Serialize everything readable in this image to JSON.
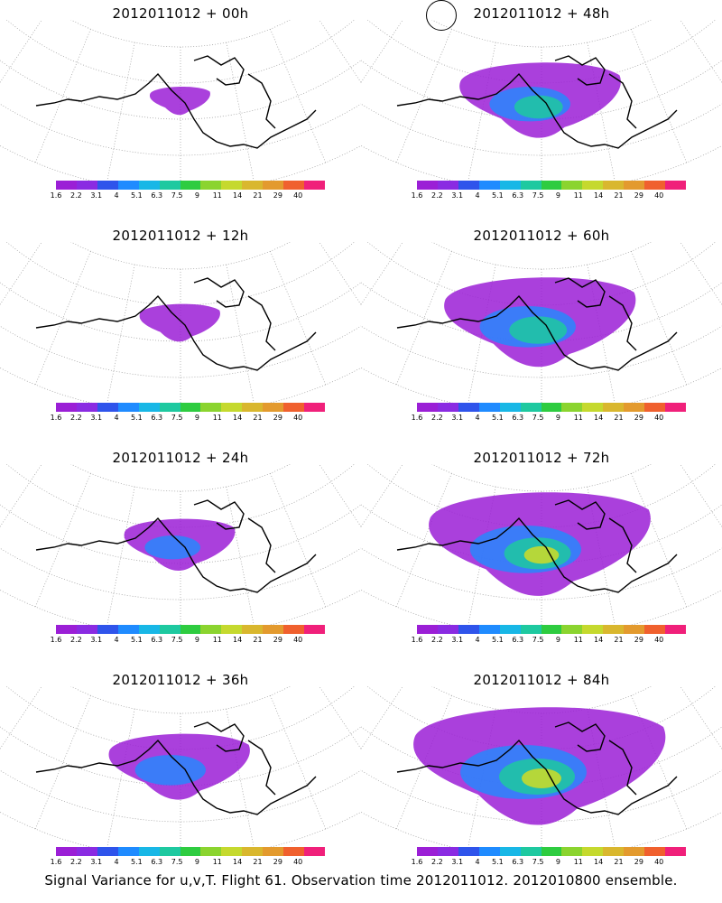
{
  "panels": [
    {
      "title": "2012011012 + 00h",
      "intensity": 0.05
    },
    {
      "title": "2012011012 + 48h",
      "intensity": 0.55
    },
    {
      "title": "2012011012 + 12h",
      "intensity": 0.15
    },
    {
      "title": "2012011012 + 60h",
      "intensity": 0.7
    },
    {
      "title": "2012011012 + 24h",
      "intensity": 0.3
    },
    {
      "title": "2012011012 + 72h",
      "intensity": 0.85
    },
    {
      "title": "2012011012 + 36h",
      "intensity": 0.45
    },
    {
      "title": "2012011012 + 84h",
      "intensity": 1.0
    }
  ],
  "colorbar": {
    "labels": [
      "1.6",
      "2.2",
      "3.1",
      "4",
      "5.1",
      "6.3",
      "7.5",
      "9",
      "11",
      "14",
      "21",
      "29",
      "40"
    ],
    "colors": [
      "#9b1fd6",
      "#8a2be2",
      "#2f54eb",
      "#1f8bff",
      "#18b7e6",
      "#1ec9a0",
      "#2ecc40",
      "#8bd42f",
      "#c5d92e",
      "#d9b72e",
      "#e39a2e",
      "#f0602e",
      "#f0207a"
    ]
  },
  "footer": "Signal Variance for u,v,T. Flight 61. Observation time 2012011012. 2012010800 ensemble."
}
